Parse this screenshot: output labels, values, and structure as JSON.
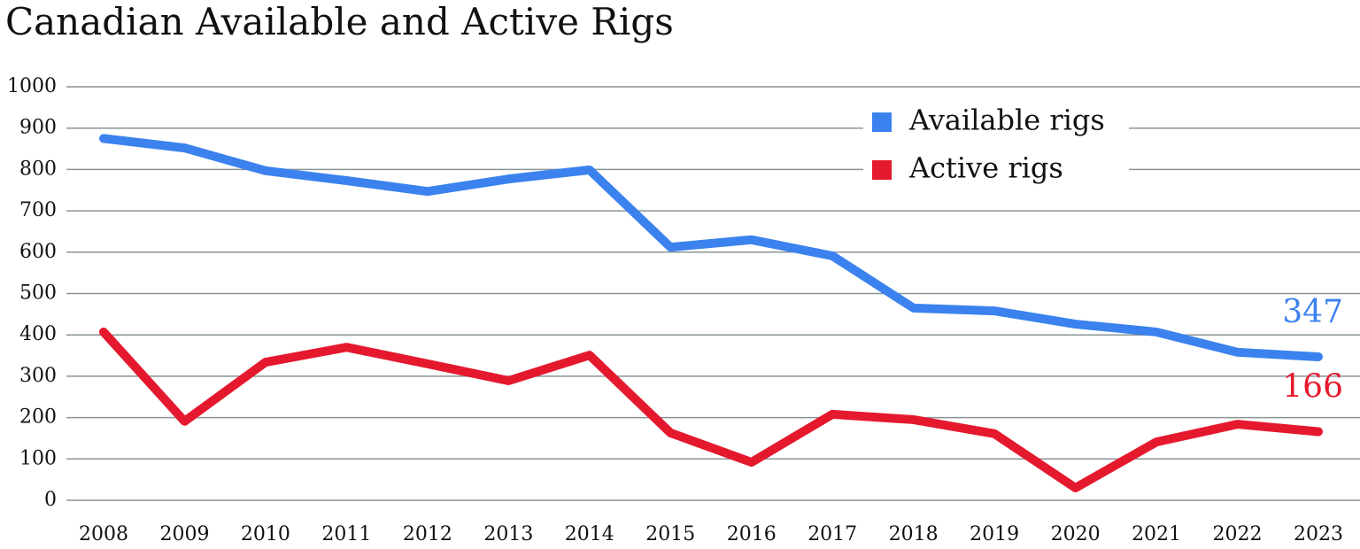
{
  "chart_data": {
    "type": "line",
    "title": "Canadian Available and Active Rigs",
    "categories": [
      "2008",
      "2009",
      "2010",
      "2011",
      "2012",
      "2013",
      "2014",
      "2015",
      "2016",
      "2017",
      "2018",
      "2019",
      "2020",
      "2021",
      "2022",
      "2023"
    ],
    "series": [
      {
        "name": "Available rigs",
        "color": "#3b82ee",
        "values": [
          875,
          852,
          797,
          773,
          747,
          777,
          799,
          612,
          630,
          591,
          465,
          458,
          426,
          407,
          358,
          347
        ]
      },
      {
        "name": "Active rigs",
        "color": "#e5192e",
        "values": [
          407,
          191,
          334,
          370,
          330,
          289,
          351,
          163,
          92,
          208,
          195,
          161,
          30,
          141,
          184,
          166
        ]
      }
    ],
    "ylim": [
      0,
      1000
    ],
    "yticks": [
      0,
      100,
      200,
      300,
      400,
      500,
      600,
      700,
      800,
      900,
      1000
    ],
    "grid": true,
    "legend": "top-right"
  }
}
